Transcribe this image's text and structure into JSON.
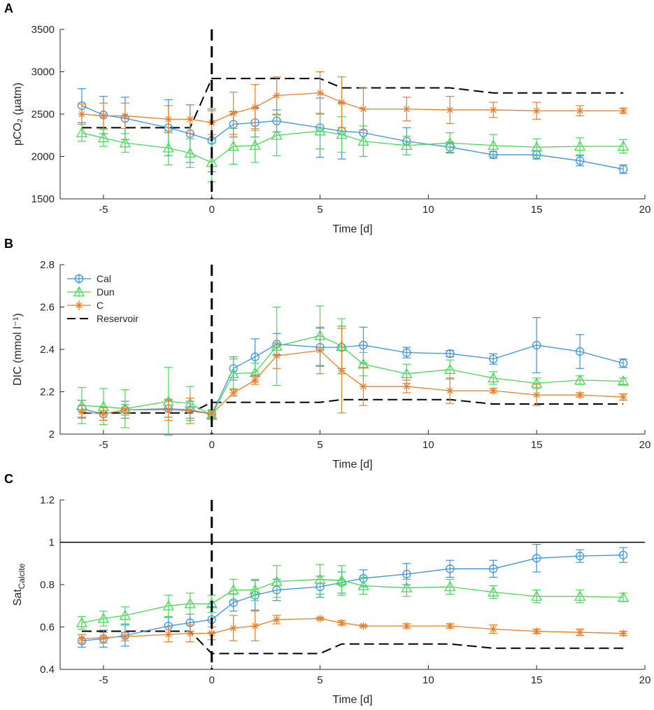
{
  "colors": {
    "Cal": "#3a93e0",
    "Dun": "#49d855",
    "C": "#f07c24",
    "Reservoir": "#000000",
    "axis": "#262626"
  },
  "chart_data": [
    {
      "type": "line",
      "panel": "A",
      "xlabel": "Time [d]",
      "ylabel": "pCO₂ (µatm)",
      "xlim": [
        -7,
        20
      ],
      "ylim": [
        1500,
        3500
      ],
      "xticks": [
        -5,
        0,
        5,
        10,
        15,
        20
      ],
      "yticks": [
        1500,
        2000,
        2500,
        3000,
        3500
      ],
      "ytick_labels": [
        "1500",
        "2000",
        "2500",
        "3000",
        "3500"
      ],
      "series": [
        {
          "name": "Cal",
          "marker": "circle",
          "x": [
            -6,
            -5,
            -4,
            -2,
            -1,
            0,
            1,
            2,
            3,
            5,
            6,
            7,
            9,
            11,
            13,
            15,
            17,
            19
          ],
          "y": [
            2600,
            2490,
            2450,
            2340,
            2270,
            2190,
            2380,
            2400,
            2420,
            2340,
            2300,
            2280,
            2180,
            2110,
            2020,
            2020,
            1950,
            1850
          ],
          "err": [
            200,
            220,
            250,
            330,
            340,
            370,
            150,
            170,
            130,
            350,
            330,
            280,
            160,
            60,
            40,
            50,
            60,
            50
          ]
        },
        {
          "name": "Dun",
          "marker": "triangle",
          "x": [
            -6,
            -5,
            -4,
            -2,
            -1,
            0,
            1,
            2,
            3,
            5,
            6,
            7,
            9,
            11,
            13,
            15,
            17,
            19
          ],
          "y": [
            2280,
            2220,
            2160,
            2100,
            2040,
            1930,
            2120,
            2130,
            2250,
            2300,
            2260,
            2180,
            2130,
            2160,
            2130,
            2110,
            2120,
            2120
          ],
          "err": [
            100,
            100,
            110,
            200,
            170,
            230,
            210,
            200,
            240,
            210,
            210,
            180,
            110,
            120,
            130,
            100,
            100,
            80
          ]
        },
        {
          "name": "C",
          "marker": "asterisk",
          "x": [
            -6,
            -5,
            -4,
            -2,
            -1,
            0,
            1,
            2,
            3,
            5,
            6,
            7,
            9,
            11,
            13,
            15,
            17,
            19
          ],
          "y": [
            2500,
            2480,
            2480,
            2440,
            2440,
            2400,
            2510,
            2580,
            2720,
            2750,
            2640,
            2560,
            2560,
            2550,
            2550,
            2540,
            2540,
            2540
          ],
          "err": [
            120,
            150,
            150,
            160,
            170,
            140,
            250,
            270,
            220,
            250,
            300,
            250,
            140,
            160,
            90,
            100,
            60,
            30
          ]
        }
      ],
      "reservoir": {
        "name": "Reservoir",
        "x": [
          -6,
          -1,
          0,
          5,
          6,
          11,
          13,
          19
        ],
        "y": [
          2340,
          2340,
          2920,
          2920,
          2810,
          2810,
          2750,
          2750
        ]
      },
      "vline_x": 0
    },
    {
      "type": "line",
      "panel": "B",
      "xlabel": "Time [d]",
      "ylabel": "DIC (mmol l⁻¹)",
      "xlim": [
        -7,
        20
      ],
      "ylim": [
        2,
        2.8
      ],
      "xticks": [
        -5,
        0,
        5,
        10,
        15,
        20
      ],
      "yticks": [
        2,
        2.2,
        2.4,
        2.6,
        2.8
      ],
      "ytick_labels": [
        "2",
        "2.2",
        "2.4",
        "2.6",
        "2.8"
      ],
      "series": [
        {
          "name": "Cal",
          "marker": "circle",
          "x": [
            -6,
            -5,
            -4,
            -2,
            -1,
            0,
            1,
            2,
            3,
            5,
            6,
            7,
            9,
            11,
            13,
            15,
            17,
            19
          ],
          "y": [
            2.12,
            2.095,
            2.115,
            2.12,
            2.115,
            2.095,
            2.31,
            2.365,
            2.425,
            2.41,
            2.41,
            2.42,
            2.385,
            2.38,
            2.355,
            2.42,
            2.39,
            2.335
          ],
          "err": [
            0.04,
            0.03,
            0.04,
            0.04,
            0.04,
            0.02,
            0.055,
            0.085,
            0.05,
            0.09,
            0.1,
            0.085,
            0.025,
            0.015,
            0.025,
            0.13,
            0.08,
            0.02
          ]
        },
        {
          "name": "Dun",
          "marker": "triangle",
          "x": [
            -6,
            -5,
            -4,
            -2,
            -1,
            0,
            1,
            2,
            3,
            5,
            6,
            7,
            9,
            11,
            13,
            15,
            17,
            19
          ],
          "y": [
            2.135,
            2.13,
            2.12,
            2.155,
            2.145,
            2.09,
            2.285,
            2.29,
            2.415,
            2.465,
            2.415,
            2.33,
            2.285,
            2.305,
            2.265,
            2.24,
            2.255,
            2.25
          ],
          "err": [
            0.085,
            0.085,
            0.09,
            0.16,
            0.08,
            0.02,
            0.07,
            0.045,
            0.185,
            0.14,
            0.13,
            0.055,
            0.045,
            0.045,
            0.03,
            0.025,
            0.02,
            0.015
          ]
        },
        {
          "name": "C",
          "marker": "asterisk",
          "x": [
            -6,
            -5,
            -4,
            -2,
            -1,
            0,
            1,
            2,
            3,
            5,
            6,
            7,
            9,
            11,
            13,
            15,
            17,
            19
          ],
          "y": [
            2.105,
            2.095,
            2.115,
            2.115,
            2.11,
            2.095,
            2.195,
            2.255,
            2.37,
            2.395,
            2.3,
            2.225,
            2.225,
            2.205,
            2.205,
            2.185,
            2.185,
            2.175
          ],
          "err": [
            0.03,
            0.03,
            0.025,
            0.05,
            0.06,
            0.02,
            0.015,
            0.02,
            0.06,
            0.11,
            0.2,
            0.09,
            0.03,
            0.06,
            0.01,
            0.05,
            0.01,
            0.015
          ]
        }
      ],
      "reservoir": {
        "name": "Reservoir",
        "x": [
          -6,
          -1,
          0,
          5,
          6,
          11,
          13,
          19
        ],
        "y": [
          2.1,
          2.1,
          2.15,
          2.15,
          2.163,
          2.163,
          2.142,
          2.142
        ]
      },
      "vline_x": 0,
      "legend": {
        "placement": "top-left",
        "entries": [
          "Cal",
          "Dun",
          "C",
          "Reservoir"
        ]
      }
    },
    {
      "type": "line",
      "panel": "C",
      "xlabel": "Time [d]",
      "ylabel": "Sat",
      "ylabel_sub": "Calcite",
      "xlim": [
        -7,
        20
      ],
      "ylim": [
        0.4,
        1.2
      ],
      "xticks": [
        -5,
        0,
        5,
        10,
        15,
        20
      ],
      "yticks": [
        0.4,
        0.6,
        0.8,
        1,
        1.2
      ],
      "ytick_labels": [
        "0.4",
        "0.6",
        "0.8",
        "1",
        "1.2"
      ],
      "series": [
        {
          "name": "Cal",
          "marker": "circle",
          "x": [
            -6,
            -5,
            -4,
            -2,
            -1,
            0,
            1,
            2,
            3,
            5,
            6,
            7,
            9,
            11,
            13,
            15,
            17,
            19
          ],
          "y": [
            0.535,
            0.545,
            0.56,
            0.605,
            0.62,
            0.635,
            0.715,
            0.75,
            0.775,
            0.79,
            0.81,
            0.83,
            0.85,
            0.875,
            0.875,
            0.925,
            0.935,
            0.94
          ],
          "err": [
            0.03,
            0.04,
            0.05,
            0.04,
            0.04,
            0.06,
            0.04,
            0.07,
            0.05,
            0.05,
            0.05,
            0.04,
            0.05,
            0.04,
            0.04,
            0.065,
            0.03,
            0.035
          ]
        },
        {
          "name": "Dun",
          "marker": "triangle",
          "x": [
            -6,
            -5,
            -4,
            -2,
            -1,
            0,
            1,
            2,
            3,
            5,
            6,
            7,
            9,
            11,
            13,
            15,
            17,
            19
          ],
          "y": [
            0.62,
            0.64,
            0.655,
            0.7,
            0.71,
            0.71,
            0.775,
            0.775,
            0.815,
            0.825,
            0.82,
            0.795,
            0.785,
            0.79,
            0.765,
            0.745,
            0.745,
            0.74
          ],
          "err": [
            0.03,
            0.035,
            0.04,
            0.05,
            0.05,
            0.04,
            0.05,
            0.05,
            0.075,
            0.07,
            0.07,
            0.04,
            0.04,
            0.035,
            0.03,
            0.03,
            0.03,
            0.02
          ]
        },
        {
          "name": "C",
          "marker": "asterisk",
          "x": [
            -6,
            -5,
            -4,
            -2,
            -1,
            0,
            1,
            2,
            3,
            5,
            6,
            7,
            9,
            11,
            13,
            15,
            17,
            19
          ],
          "y": [
            0.545,
            0.55,
            0.555,
            0.565,
            0.57,
            0.57,
            0.595,
            0.605,
            0.635,
            0.64,
            0.62,
            0.605,
            0.605,
            0.605,
            0.59,
            0.58,
            0.575,
            0.57
          ],
          "err": [
            0.02,
            0.025,
            0.02,
            0.035,
            0.04,
            0.03,
            0.06,
            0.07,
            0.02,
            0.005,
            0.01,
            0.005,
            0.01,
            0.01,
            0.02,
            0.01,
            0.015,
            0.01
          ]
        }
      ],
      "reservoir": {
        "name": "Reservoir",
        "x": [
          -6,
          -1,
          0,
          5,
          6,
          11,
          13,
          19
        ],
        "y": [
          0.58,
          0.58,
          0.475,
          0.475,
          0.52,
          0.52,
          0.5,
          0.5
        ]
      },
      "vline_x": 0,
      "hline_y": 1
    }
  ]
}
